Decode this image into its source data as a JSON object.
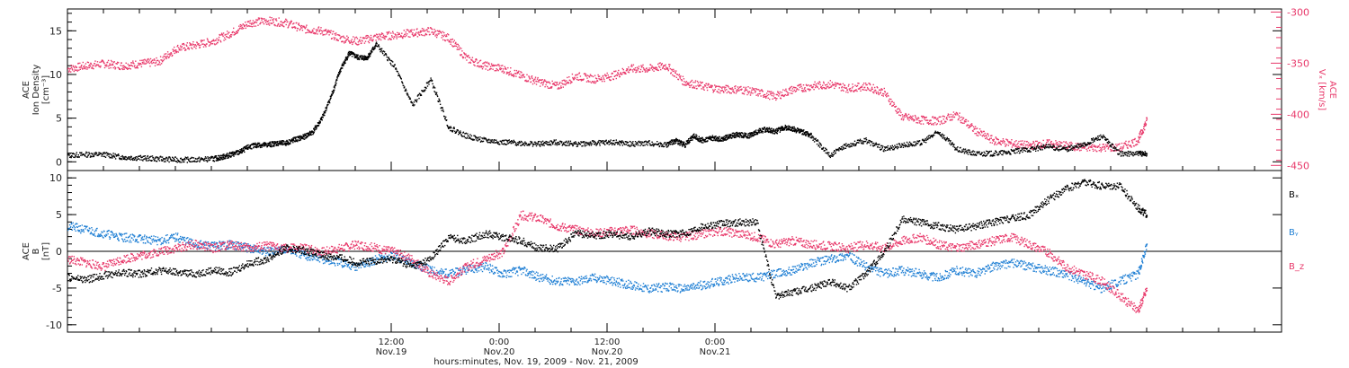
{
  "chart_data": [
    {
      "type": "scatter",
      "panel": "top",
      "left_axis": {
        "label_lines": [
          "ACE",
          "Ion Density",
          "[cm⁻³]"
        ],
        "range": [
          -1,
          17.5
        ],
        "ticks": [
          0,
          5,
          10,
          15
        ]
      },
      "right_axis": {
        "label_lines": [
          "ACE",
          "Vₓ [km/s]"
        ],
        "range": [
          -455,
          -297
        ],
        "ticks": [
          -300,
          -350,
          -400,
          -450
        ],
        "color": "#e8386a"
      },
      "series": [
        {
          "axis": "left",
          "color": "#000000",
          "x": [
            0,
            2,
            4,
            6,
            8,
            10,
            12,
            14,
            16,
            17,
            18,
            19,
            20,
            21,
            22,
            23,
            24,
            25,
            26,
            27,
            28,
            29,
            30,
            31,
            32,
            33,
            34,
            36,
            38,
            40,
            42,
            44,
            46,
            48,
            50,
            52,
            54,
            56,
            58,
            60,
            62,
            64,
            66,
            67,
            68,
            69,
            70,
            71,
            72,
            73,
            74,
            75,
            76,
            77,
            78,
            79,
            80,
            81,
            82,
            84,
            86,
            88,
            90,
            92,
            94,
            96,
            98,
            100,
            102,
            104,
            106,
            108,
            110,
            112,
            114,
            116,
            118,
            119
          ],
          "y": [
            0.8,
            0.9,
            0.9,
            0.6,
            0.5,
            0.4,
            0.3,
            0.3,
            0.4,
            0.6,
            0.9,
            1.2,
            1.8,
            2.0,
            2.0,
            2.2,
            2.2,
            2.6,
            2.9,
            3.5,
            5.0,
            7.5,
            10.5,
            12.5,
            12.0,
            12.0,
            13.5,
            11.0,
            6.5,
            9.5,
            4.0,
            3.0,
            2.5,
            2.3,
            2.2,
            2.1,
            2.3,
            2.1,
            2.2,
            2.3,
            2.1,
            2.2,
            2.0,
            2.5,
            2.0,
            3.0,
            2.5,
            2.8,
            2.6,
            3.0,
            3.2,
            3.0,
            3.5,
            3.8,
            3.5,
            4.0,
            3.8,
            3.5,
            3.0,
            0.8,
            2.0,
            2.5,
            1.5,
            2.0,
            2.2,
            3.5,
            1.5,
            1.0,
            1.0,
            1.2,
            1.5,
            1.8,
            1.5,
            2.0,
            3.0,
            1.0,
            1.0,
            1.0
          ]
        },
        {
          "axis": "right",
          "color": "#e8386a",
          "x": [
            0,
            2,
            4,
            6,
            8,
            10,
            12,
            14,
            16,
            18,
            20,
            22,
            24,
            26,
            28,
            30,
            32,
            34,
            36,
            38,
            40,
            42,
            44,
            46,
            48,
            50,
            52,
            54,
            56,
            58,
            60,
            62,
            64,
            66,
            68,
            70,
            72,
            74,
            76,
            78,
            80,
            82,
            84,
            86,
            88,
            90,
            92,
            94,
            96,
            98,
            100,
            102,
            104,
            106,
            108,
            110,
            112,
            114,
            116,
            118,
            119
          ],
          "y": [
            -355,
            -352,
            -350,
            -352,
            -350,
            -348,
            -335,
            -332,
            -328,
            -320,
            -310,
            -308,
            -310,
            -316,
            -318,
            -325,
            -328,
            -324,
            -322,
            -320,
            -318,
            -325,
            -345,
            -352,
            -355,
            -362,
            -368,
            -372,
            -362,
            -365,
            -362,
            -355,
            -355,
            -352,
            -368,
            -372,
            -375,
            -375,
            -378,
            -382,
            -375,
            -372,
            -370,
            -374,
            -372,
            -378,
            -402,
            -405,
            -406,
            -400,
            -415,
            -425,
            -428,
            -430,
            -428,
            -430,
            -432,
            -432,
            -432,
            -425,
            -405
          ]
        }
      ]
    },
    {
      "type": "scatter",
      "panel": "bottom",
      "left_axis": {
        "label_lines": [
          "ACE",
          "B",
          "[nT]"
        ],
        "range": [
          -11,
          11
        ],
        "ticks": [
          -10,
          -5,
          0,
          5,
          10
        ]
      },
      "zero_line": true,
      "series": [
        {
          "name": "Bₓ",
          "color": "#000000",
          "x": [
            0,
            2,
            4,
            6,
            8,
            10,
            12,
            14,
            16,
            18,
            20,
            22,
            24,
            26,
            28,
            30,
            32,
            34,
            36,
            38,
            40,
            42,
            44,
            46,
            48,
            50,
            52,
            54,
            56,
            58,
            60,
            62,
            64,
            66,
            68,
            70,
            72,
            74,
            76,
            78,
            80,
            82,
            84,
            86,
            88,
            90,
            92,
            94,
            96,
            98,
            100,
            102,
            104,
            106,
            108,
            110,
            112,
            114,
            116,
            118,
            119
          ],
          "y": [
            -3.5,
            -3.8,
            -3.2,
            -2.8,
            -3.0,
            -2.5,
            -2.8,
            -3.0,
            -2.5,
            -2.8,
            -1.5,
            -1.0,
            0.5,
            0.2,
            -0.5,
            -0.8,
            -1.5,
            -1.2,
            -1.0,
            -2.0,
            -1.0,
            2.0,
            1.5,
            2.5,
            2.0,
            1.5,
            0.5,
            0.5,
            2.5,
            2.2,
            2.5,
            2.0,
            2.8,
            2.5,
            2.5,
            3.5,
            3.8,
            4.0,
            4.0,
            -6.0,
            -5.5,
            -5.0,
            -4.0,
            -5.0,
            -3.0,
            0.0,
            4.5,
            4.0,
            3.5,
            3.0,
            3.5,
            4.0,
            4.5,
            5.0,
            7.0,
            8.5,
            9.5,
            9.0,
            9.0,
            6.0,
            5.0
          ]
        },
        {
          "name": "Bᵧ",
          "color": "#1f7fd4",
          "x": [
            0,
            2,
            4,
            6,
            8,
            10,
            12,
            14,
            16,
            18,
            20,
            22,
            24,
            26,
            28,
            30,
            32,
            34,
            36,
            38,
            40,
            42,
            44,
            46,
            48,
            50,
            52,
            54,
            56,
            58,
            60,
            62,
            64,
            66,
            68,
            70,
            72,
            74,
            76,
            78,
            80,
            82,
            84,
            86,
            88,
            90,
            92,
            94,
            96,
            98,
            100,
            102,
            104,
            106,
            108,
            110,
            112,
            114,
            116,
            118,
            119
          ],
          "y": [
            3.5,
            3.0,
            2.5,
            2.0,
            1.8,
            1.5,
            2.0,
            1.0,
            0.8,
            1.0,
            0.5,
            0.0,
            0.5,
            -0.5,
            -1.0,
            -1.5,
            -2.0,
            -1.0,
            -0.5,
            -1.5,
            -2.5,
            -3.0,
            -2.5,
            -2.0,
            -3.0,
            -2.5,
            -3.5,
            -4.0,
            -4.0,
            -3.5,
            -4.0,
            -4.5,
            -5.0,
            -4.8,
            -5.0,
            -4.5,
            -4.0,
            -3.5,
            -3.5,
            -3.0,
            -2.5,
            -1.5,
            -1.0,
            -0.5,
            -2.0,
            -3.0,
            -2.5,
            -3.0,
            -3.5,
            -2.5,
            -3.0,
            -2.0,
            -1.5,
            -2.0,
            -2.5,
            -3.0,
            -4.0,
            -5.0,
            -4.0,
            -3.0,
            1.0
          ]
        },
        {
          "name": "B_z",
          "color": "#e8386a",
          "x": [
            0,
            2,
            4,
            6,
            8,
            10,
            12,
            14,
            16,
            18,
            20,
            22,
            24,
            26,
            28,
            30,
            32,
            34,
            36,
            38,
            40,
            42,
            44,
            46,
            48,
            50,
            52,
            54,
            56,
            58,
            60,
            62,
            64,
            66,
            68,
            70,
            72,
            74,
            76,
            78,
            80,
            82,
            84,
            86,
            88,
            90,
            92,
            94,
            96,
            98,
            100,
            102,
            104,
            106,
            108,
            110,
            112,
            114,
            116,
            118,
            119
          ],
          "y": [
            -1.0,
            -1.5,
            -2.0,
            -1.0,
            -0.5,
            0.0,
            0.5,
            1.0,
            0.5,
            1.0,
            0.5,
            0.8,
            0.5,
            0.5,
            0.0,
            0.5,
            1.0,
            0.5,
            0.0,
            -1.0,
            -3.0,
            -4.0,
            -2.0,
            -1.0,
            0.0,
            5.0,
            4.5,
            3.5,
            3.0,
            2.5,
            2.8,
            3.0,
            2.5,
            2.2,
            2.0,
            2.5,
            2.8,
            2.5,
            2.0,
            1.0,
            1.5,
            1.0,
            0.8,
            0.5,
            1.0,
            0.5,
            1.5,
            2.0,
            1.0,
            0.5,
            1.0,
            1.5,
            2.0,
            1.0,
            0.0,
            -2.0,
            -3.0,
            -4.0,
            -6.0,
            -8.0,
            -5.0
          ]
        }
      ],
      "legend": [
        "Bₓ",
        "Bᵧ",
        "B_z"
      ],
      "legend_placement": "right"
    }
  ],
  "x_axis": {
    "label": "hours:minutes, Nov. 19, 2009 - Nov. 21, 2009",
    "range_hours": [
      -24,
      111
    ],
    "major_ticks": [
      {
        "hours": 12,
        "time": "12:00",
        "date": "Nov.19"
      },
      {
        "hours": 24,
        "time": "0:00",
        "date": "Nov.20"
      },
      {
        "hours": 36,
        "time": "12:00",
        "date": "Nov.20"
      },
      {
        "hours": 48,
        "time": "0:00",
        "date": "Nov.21"
      }
    ]
  }
}
